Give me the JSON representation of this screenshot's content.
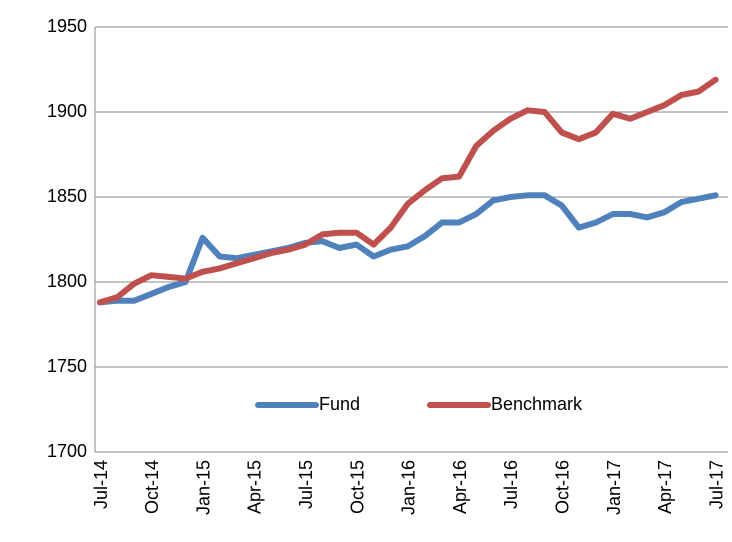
{
  "chart_data": {
    "type": "line",
    "categories": [
      "Jul-14",
      null,
      null,
      "Oct-14",
      null,
      null,
      "Jan-15",
      null,
      null,
      "Apr-15",
      null,
      null,
      "Jul-15",
      null,
      null,
      "Oct-15",
      null,
      null,
      "Jan-16",
      null,
      null,
      "Apr-16",
      null,
      null,
      "Jul-16",
      null,
      null,
      "Oct-16",
      null,
      null,
      "Jan-17",
      null,
      null,
      "Apr-17",
      null,
      null,
      "Jul-17"
    ],
    "series": [
      {
        "name": "Fund",
        "color": "#4f81bd",
        "values": [
          1788,
          1789,
          1789,
          1793,
          1797,
          1800,
          1826,
          1815,
          1814,
          1816,
          1818,
          1820,
          1823,
          1824,
          1820,
          1822,
          1815,
          1819,
          1821,
          1827,
          1835,
          1835,
          1840,
          1848,
          1850,
          1851,
          1851,
          1845,
          1832,
          1835,
          1840,
          1840,
          1838,
          1841,
          1847,
          1849,
          1851
        ]
      },
      {
        "name": "Benchmark",
        "color": "#c0504d",
        "values": [
          1788,
          1791,
          1799,
          1804,
          1803,
          1802,
          1806,
          1808,
          1811,
          1814,
          1817,
          1819,
          1822,
          1828,
          1829,
          1829,
          1822,
          1832,
          1846,
          1854,
          1861,
          1862,
          1880,
          1889,
          1896,
          1901,
          1900,
          1888,
          1884,
          1888,
          1899,
          1896,
          1900,
          1904,
          1910,
          1912,
          1919
        ]
      }
    ],
    "ylim": [
      1700,
      1950
    ],
    "yticks": [
      1700,
      1750,
      1800,
      1850,
      1900,
      1950
    ],
    "grid": true
  }
}
